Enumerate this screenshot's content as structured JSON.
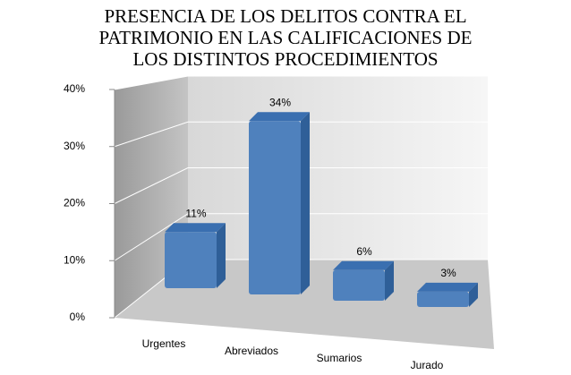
{
  "chart_data": {
    "type": "bar3d",
    "title": "PRESENCIA DE LOS DELITOS CONTRA EL PATRIMONIO EN LAS CALIFICACIONES DE LOS DISTINTOS PROCEDIMIENTOS",
    "categories": [
      "Urgentes",
      "Abreviados",
      "Sumarios",
      "Jurado"
    ],
    "values": [
      11,
      34,
      6,
      3
    ],
    "value_labels": [
      "11%",
      "34%",
      "6%",
      "3%"
    ],
    "color": "#4f81bd",
    "ylim": [
      0,
      40
    ],
    "yticks": [
      {
        "value": 0,
        "label": "0%"
      },
      {
        "value": 10,
        "label": "10%"
      },
      {
        "value": 20,
        "label": "20%"
      },
      {
        "value": 30,
        "label": "30%"
      },
      {
        "value": 40,
        "label": "40%"
      }
    ],
    "grid": true
  }
}
